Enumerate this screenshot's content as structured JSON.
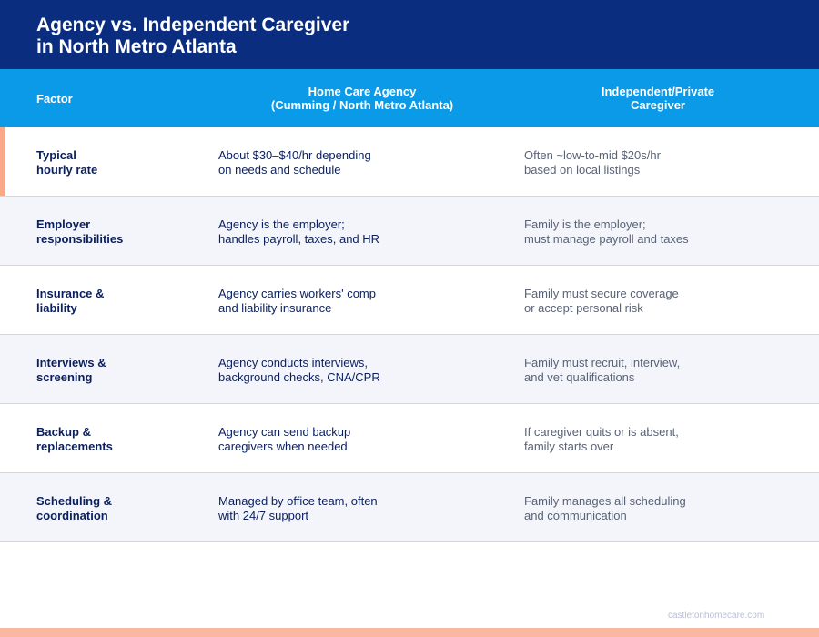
{
  "title": {
    "line1": "Agency vs. Independent Caregiver",
    "line2": "in North Metro Atlanta"
  },
  "header": {
    "factor": "Factor",
    "agency_line1": "Home Care Agency",
    "agency_line2": "(Cumming / North Metro Atlanta)",
    "independent_line1": "Independent/Private",
    "independent_line2": "Caregiver"
  },
  "rows": [
    {
      "factor": [
        "Typical",
        "hourly rate"
      ],
      "agency": [
        "About $30–$40/hr depending",
        "on needs and schedule"
      ],
      "independent": [
        "Often ~low-to-mid $20s/hr",
        "based on local listings"
      ]
    },
    {
      "factor": [
        "Employer",
        "responsibilities"
      ],
      "agency": [
        "Agency is the employer;",
        "handles payroll, taxes, and HR"
      ],
      "independent": [
        "Family is the employer;",
        "must manage payroll and taxes"
      ]
    },
    {
      "factor": [
        "Insurance &",
        "liability"
      ],
      "agency": [
        "Agency carries workers' comp",
        "and liability insurance"
      ],
      "independent": [
        "Family must secure coverage",
        "or accept personal risk"
      ]
    },
    {
      "factor": [
        "Interviews &",
        "screening"
      ],
      "agency": [
        "Agency conducts interviews,",
        "background checks, CNA/CPR"
      ],
      "independent": [
        "Family must recruit, interview,",
        "and vet qualifications"
      ]
    },
    {
      "factor": [
        "Backup &",
        "replacements"
      ],
      "agency": [
        "Agency can send backup",
        "caregivers when needed"
      ],
      "independent": [
        "If caregiver quits or is absent,",
        "family starts over"
      ]
    },
    {
      "factor": [
        "Scheduling &",
        "coordination"
      ],
      "agency": [
        "Managed by office team, often",
        "with 24/7 support"
      ],
      "independent": [
        "Family manages all scheduling",
        "and communication"
      ]
    }
  ],
  "footer": {
    "website": "castletonhomecare.com"
  },
  "colors": {
    "title_bg": "#0b2d7f",
    "header_bg": "#0b9ae8",
    "accent": "#f9a987"
  }
}
